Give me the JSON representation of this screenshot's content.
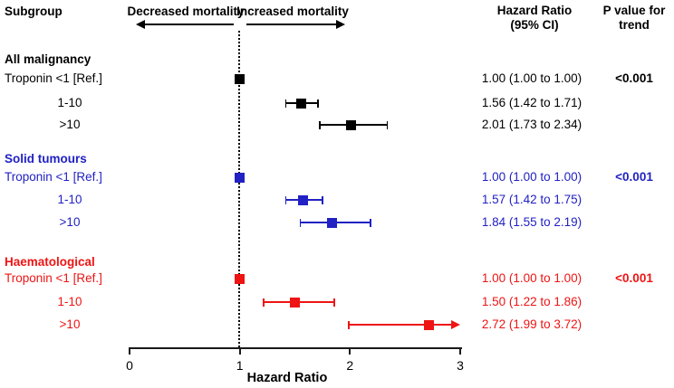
{
  "header": {
    "subgroup": "Subgroup",
    "decreased": "Decreased mortality",
    "increased": "Increased mortality",
    "hr_col_line1": "Hazard Ratio",
    "hr_col_line2": "(95% CI)",
    "p_col_line1": "P value for",
    "p_col_line2": "trend"
  },
  "chart_data": {
    "type": "scatter",
    "subtype": "forest-plot",
    "xlabel": "Hazard Ratio",
    "xlim": [
      0,
      3
    ],
    "x_ticks": [
      0,
      1,
      2,
      3
    ],
    "reference_line_x": 1,
    "colors": {
      "all_malignancy": "#000000",
      "solid_tumours": "#2121C4",
      "haematological": "#EE1414"
    },
    "groups": [
      {
        "name": "All malignancy",
        "color": "#000000",
        "p_value_trend": "<0.001",
        "rows": [
          {
            "label": "Troponin <1 [Ref.]",
            "hr": 1.0,
            "ci_low": 1.0,
            "ci_high": 1.0,
            "text": "1.00 (1.00 to 1.00)",
            "clipped_right": false
          },
          {
            "label": "1-10",
            "hr": 1.56,
            "ci_low": 1.42,
            "ci_high": 1.71,
            "text": "1.56 (1.42 to 1.71)",
            "clipped_right": false
          },
          {
            "label": ">10",
            "hr": 2.01,
            "ci_low": 1.73,
            "ci_high": 2.34,
            "text": "2.01 (1.73 to 2.34)",
            "clipped_right": false
          }
        ]
      },
      {
        "name": "Solid tumours",
        "color": "#2121C4",
        "p_value_trend": "<0.001",
        "rows": [
          {
            "label": "Troponin <1 [Ref.]",
            "hr": 1.0,
            "ci_low": 1.0,
            "ci_high": 1.0,
            "text": "1.00 (1.00 to 1.00)",
            "clipped_right": false
          },
          {
            "label": "1-10",
            "hr": 1.57,
            "ci_low": 1.42,
            "ci_high": 1.75,
            "text": "1.57 (1.42 to 1.75)",
            "clipped_right": false
          },
          {
            "label": ">10",
            "hr": 1.84,
            "ci_low": 1.55,
            "ci_high": 2.19,
            "text": "1.84 (1.55 to 2.19)",
            "clipped_right": false
          }
        ]
      },
      {
        "name": "Haematological",
        "color": "#EE1414",
        "p_value_trend": "<0.001",
        "rows": [
          {
            "label": "Troponin <1 [Ref.]",
            "hr": 1.0,
            "ci_low": 1.0,
            "ci_high": 1.0,
            "text": "1.00 (1.00 to 1.00)",
            "clipped_right": false
          },
          {
            "label": "1-10",
            "hr": 1.5,
            "ci_low": 1.22,
            "ci_high": 1.86,
            "text": "1.50 (1.22 to 1.86)",
            "clipped_right": false
          },
          {
            "label": ">10",
            "hr": 2.72,
            "ci_low": 1.99,
            "ci_high": 3.72,
            "text": "2.72 (1.99 to 3.72)",
            "clipped_right": true
          }
        ]
      }
    ]
  }
}
